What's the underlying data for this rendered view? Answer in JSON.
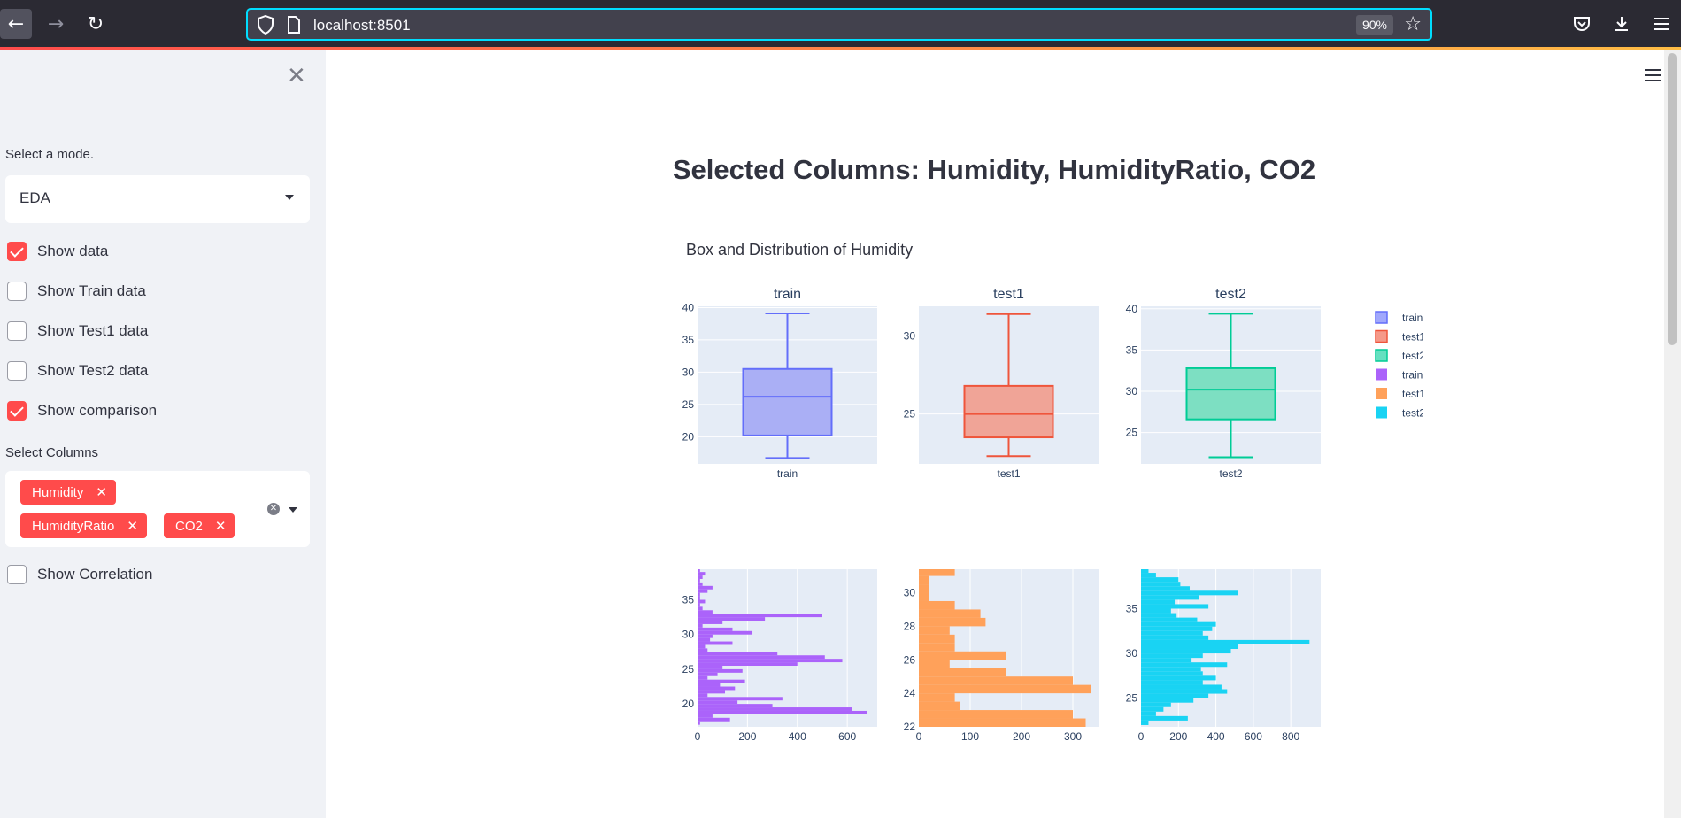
{
  "browser": {
    "url": "localhost:8501",
    "zoom": "90%"
  },
  "sidebar": {
    "mode_label": "Select a mode.",
    "mode_value": "EDA",
    "checkboxes": [
      {
        "label": "Show data",
        "checked": true
      },
      {
        "label": "Show Train data",
        "checked": false
      },
      {
        "label": "Show Test1 data",
        "checked": false
      },
      {
        "label": "Show Test2 data",
        "checked": false
      },
      {
        "label": "Show comparison",
        "checked": true
      }
    ],
    "columns_label": "Select Columns",
    "selected_columns": [
      "Humidity",
      "HumidityRatio",
      "CO2"
    ],
    "correlation_label": "Show Correlation",
    "tag_close": "✕"
  },
  "main": {
    "title": "Selected Columns: Humidity, HumidityRatio, CO2",
    "subtitle": "Box and Distribution of Humidity"
  },
  "chart_data": {
    "type": "box+histogram",
    "subplot_titles": [
      "train",
      "test1",
      "test2"
    ],
    "legend": [
      {
        "name": "train",
        "color": "#636efa",
        "kind": "box"
      },
      {
        "name": "test1",
        "color": "#ef553b",
        "kind": "box"
      },
      {
        "name": "test2",
        "color": "#00cc96",
        "kind": "box"
      },
      {
        "name": "train",
        "color": "#ab63fa",
        "kind": "histogram"
      },
      {
        "name": "test1",
        "color": "#ffa15a",
        "kind": "histogram"
      },
      {
        "name": "test2",
        "color": "#19d3f3",
        "kind": "histogram"
      }
    ],
    "boxes": [
      {
        "name": "train",
        "color": "#636efa",
        "fill": "#aaaff5",
        "min": 16.7,
        "q1": 20.2,
        "median": 26.2,
        "q3": 30.5,
        "max": 39.1,
        "yticks": [
          20,
          25,
          30,
          35,
          40
        ],
        "ylim": [
          15.8,
          40.2
        ]
      },
      {
        "name": "test1",
        "color": "#ef553b",
        "fill": "#f0a497",
        "min": 22.3,
        "q1": 23.5,
        "median": 25.0,
        "q3": 26.8,
        "max": 31.4,
        "yticks": [
          25,
          30
        ],
        "ylim": [
          21.8,
          31.9
        ]
      },
      {
        "name": "test2",
        "color": "#00cc96",
        "fill": "#7ddfc2",
        "min": 22.0,
        "q1": 26.6,
        "median": 30.2,
        "q3": 32.8,
        "max": 39.4,
        "yticks": [
          25,
          30,
          35,
          40
        ],
        "ylim": [
          21.2,
          40.3
        ]
      }
    ],
    "histograms": [
      {
        "name": "train",
        "color": "#ab63fa",
        "ylim": [
          16.7,
          39.4
        ],
        "yticks": [
          20,
          25,
          30,
          35
        ],
        "xlim": [
          0,
          720
        ],
        "xticks": [
          0,
          200,
          400,
          600
        ],
        "bin_start": 17,
        "bin_width": 0.5,
        "counts": [
          10,
          130,
          60,
          680,
          620,
          300,
          160,
          340,
          40,
          110,
          150,
          90,
          190,
          40,
          80,
          180,
          100,
          400,
          580,
          510,
          320,
          40,
          30,
          140,
          50,
          60,
          220,
          140,
          20,
          100,
          270,
          500,
          60,
          20,
          10,
          30,
          10,
          10,
          40,
          60,
          20,
          10,
          20,
          30,
          10
        ]
      },
      {
        "name": "test1",
        "color": "#ffa15a",
        "ylim": [
          22.0,
          31.4
        ],
        "yticks": [
          22,
          24,
          26,
          28,
          30
        ],
        "xlim": [
          0,
          350
        ],
        "xticks": [
          0,
          100,
          200,
          300
        ],
        "bin_start": 22,
        "bin_width": 0.5,
        "counts": [
          325,
          300,
          80,
          70,
          335,
          300,
          170,
          60,
          170,
          70,
          70,
          60,
          130,
          120,
          70,
          20,
          20,
          20,
          70,
          65
        ]
      },
      {
        "name": "test2",
        "color": "#19d3f3",
        "ylim": [
          21.8,
          39.4
        ],
        "yticks": [
          25,
          30,
          35
        ],
        "xlim": [
          0,
          960
        ],
        "xticks": [
          0,
          200,
          400,
          600,
          800
        ],
        "bin_start": 22,
        "bin_width": 0.5,
        "counts": [
          40,
          250,
          80,
          120,
          160,
          280,
          360,
          460,
          430,
          330,
          400,
          330,
          320,
          460,
          270,
          330,
          480,
          520,
          900,
          360,
          330,
          380,
          400,
          300,
          190,
          160,
          360,
          180,
          310,
          520,
          260,
          210,
          200,
          80,
          40,
          40,
          20
        ]
      }
    ]
  }
}
